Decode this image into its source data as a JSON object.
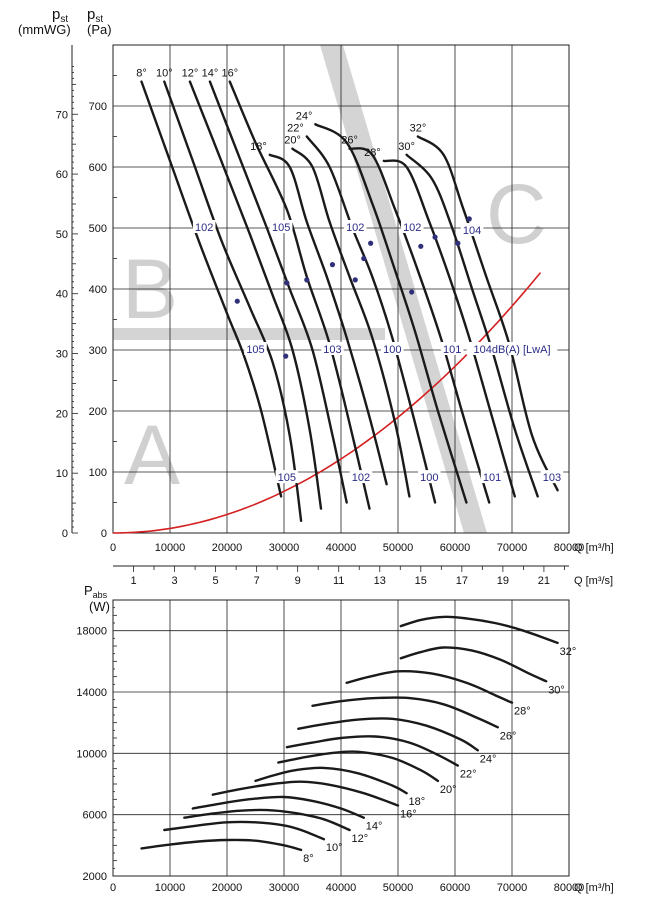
{
  "chart_data": [
    {
      "type": "line",
      "title": "",
      "left_labels": {
        "mmwg": {
          "sym": "p",
          "sub": "st",
          "unit": "(mmWG)"
        },
        "pa": {
          "sym": "p",
          "sub": "st",
          "unit": "(Pa)"
        }
      },
      "xlabel": "Q [m³/h]",
      "x2label": "Q [m³/s]",
      "xlim": [
        0,
        80000
      ],
      "ylim": [
        0,
        800
      ],
      "x_ticks": [
        "0",
        "10000",
        "20000",
        "30000",
        "40000",
        "50000",
        "60000",
        "70000",
        "80000"
      ],
      "x2_ticks": [
        "1",
        "3",
        "5",
        "7",
        "9",
        "11",
        "13",
        "15",
        "17",
        "19",
        "21"
      ],
      "y_ticks_pa": [
        "0",
        "100",
        "200",
        "300",
        "400",
        "500",
        "600",
        "700"
      ],
      "y_ticks_mmwg": [
        "0",
        "10",
        "20",
        "30",
        "40",
        "50",
        "60",
        "70"
      ],
      "zones": [
        "A",
        "B",
        "C"
      ],
      "system_curve": {
        "q_max": 77000,
        "p_max": 450
      },
      "series": [
        {
          "name": "8°",
          "x": [
            5000,
            10000,
            15000,
            20000,
            23000,
            26000,
            29500
          ],
          "y": [
            740,
            610,
            480,
            360,
            290,
            200,
            60
          ]
        },
        {
          "name": "10°",
          "x": [
            9000,
            14000,
            19000,
            24000,
            28000,
            31000,
            33000
          ],
          "y": [
            740,
            610,
            480,
            370,
            280,
            160,
            20
          ]
        },
        {
          "name": "12°",
          "x": [
            13500,
            19000,
            24000,
            28000,
            31500,
            34500,
            36500
          ],
          "y": [
            740,
            610,
            490,
            390,
            300,
            170,
            40
          ]
        },
        {
          "name": "14°",
          "x": [
            17000,
            22000,
            27000,
            31000,
            35000,
            38500,
            41000
          ],
          "y": [
            740,
            620,
            500,
            400,
            300,
            160,
            50
          ]
        },
        {
          "name": "16°",
          "x": [
            20500,
            25000,
            30500,
            34000,
            38000,
            42000,
            45000
          ],
          "y": [
            740,
            640,
            530,
            420,
            310,
            160,
            40
          ]
        },
        {
          "name": "18°",
          "x": [
            27500,
            31000,
            34000,
            37500,
            41000,
            45000,
            48000
          ],
          "y": [
            620,
            600,
            510,
            420,
            320,
            190,
            80
          ]
        },
        {
          "name": "20°",
          "x": [
            31500,
            35000,
            38000,
            41500,
            45500,
            49500,
            52000
          ],
          "y": [
            630,
            600,
            510,
            420,
            320,
            180,
            60
          ]
        },
        {
          "name": "22°",
          "x": [
            34000,
            38000,
            42000,
            45500,
            49000,
            53000,
            56500
          ],
          "y": [
            650,
            600,
            500,
            420,
            320,
            180,
            50
          ]
        },
        {
          "name": "24°",
          "x": [
            35500,
            41000,
            45500,
            49500,
            53000,
            57000,
            62000
          ],
          "y": [
            670,
            640,
            540,
            430,
            330,
            200,
            50
          ]
        },
        {
          "name": "26°",
          "x": [
            41500,
            45500,
            49500,
            53500,
            57500,
            61500,
            66000
          ],
          "y": [
            630,
            620,
            530,
            430,
            320,
            190,
            50
          ]
        },
        {
          "name": "28°",
          "x": [
            47500,
            51500,
            55500,
            59000,
            62500,
            66500,
            70500
          ],
          "y": [
            610,
            600,
            510,
            420,
            320,
            190,
            60
          ]
        },
        {
          "name": "30°",
          "x": [
            51500,
            56000,
            59500,
            63000,
            66500,
            70500,
            74500
          ],
          "y": [
            620,
            580,
            500,
            400,
            300,
            170,
            60
          ]
        },
        {
          "name": "32°",
          "x": [
            53500,
            58000,
            61500,
            65500,
            69500,
            73500,
            78000
          ],
          "y": [
            650,
            620,
            530,
            420,
            310,
            160,
            70
          ]
        }
      ],
      "noise_labels": [
        {
          "text": "102",
          "x": 16000,
          "y": 500
        },
        {
          "text": "105",
          "x": 29500,
          "y": 500
        },
        {
          "text": "102",
          "x": 42500,
          "y": 500
        },
        {
          "text": "102",
          "x": 52500,
          "y": 500
        },
        {
          "text": "104",
          "x": 63000,
          "y": 495
        },
        {
          "text": "105",
          "x": 25000,
          "y": 300
        },
        {
          "text": "103",
          "x": 38500,
          "y": 300
        },
        {
          "text": "100",
          "x": 49000,
          "y": 300
        },
        {
          "text": "101",
          "x": 59500,
          "y": 300
        },
        {
          "text": "104dB(A) [LwA]",
          "x": 70000,
          "y": 300
        },
        {
          "text": "105",
          "x": 30500,
          "y": 90
        },
        {
          "text": "102",
          "x": 43500,
          "y": 90
        },
        {
          "text": "100",
          "x": 55500,
          "y": 90
        },
        {
          "text": "101",
          "x": 66500,
          "y": 90
        },
        {
          "text": "103",
          "x": 77000,
          "y": 90
        }
      ],
      "markers": [
        {
          "x": 21800,
          "y": 380
        },
        {
          "x": 30300,
          "y": 290
        },
        {
          "x": 30500,
          "y": 410
        },
        {
          "x": 34000,
          "y": 415
        },
        {
          "x": 38500,
          "y": 440
        },
        {
          "x": 42500,
          "y": 415
        },
        {
          "x": 44000,
          "y": 450
        },
        {
          "x": 45200,
          "y": 475
        },
        {
          "x": 52400,
          "y": 395
        },
        {
          "x": 54000,
          "y": 470
        },
        {
          "x": 56500,
          "y": 485
        },
        {
          "x": 60500,
          "y": 475
        },
        {
          "x": 62500,
          "y": 515
        }
      ]
    },
    {
      "type": "line",
      "title": "",
      "ylabel": {
        "sym": "P",
        "sub": "abs",
        "unit": "(W)"
      },
      "xlabel": "Q [m³/h]",
      "xlim": [
        0,
        80000
      ],
      "ylim": [
        2000,
        20000
      ],
      "x_ticks": [
        "0",
        "10000",
        "20000",
        "30000",
        "40000",
        "50000",
        "60000",
        "70000",
        "80000"
      ],
      "y_ticks": [
        "2000",
        "6000",
        "10000",
        "14000",
        "18000"
      ],
      "series": [
        {
          "name": "8°",
          "x": [
            5000,
            10000,
            15000,
            20000,
            25000,
            30000,
            33000
          ],
          "y": [
            3800,
            4050,
            4250,
            4350,
            4300,
            4000,
            3700
          ]
        },
        {
          "name": "10°",
          "x": [
            9000,
            15000,
            20000,
            25000,
            30000,
            33000,
            37000
          ],
          "y": [
            5000,
            5300,
            5500,
            5500,
            5300,
            5000,
            4400
          ]
        },
        {
          "name": "12°",
          "x": [
            12500,
            17000,
            22000,
            27000,
            32000,
            37000,
            41500
          ],
          "y": [
            5800,
            6050,
            6250,
            6300,
            6100,
            5700,
            5000
          ]
        },
        {
          "name": "14°",
          "x": [
            14000,
            20000,
            25000,
            30000,
            35000,
            40000,
            44000
          ],
          "y": [
            6400,
            6800,
            7050,
            7150,
            6900,
            6400,
            5800
          ]
        },
        {
          "name": "16°",
          "x": [
            17500,
            22000,
            28000,
            33000,
            38000,
            44000,
            50000
          ],
          "y": [
            7300,
            7650,
            8000,
            8150,
            7950,
            7400,
            6600
          ]
        },
        {
          "name": "18°",
          "x": [
            25000,
            28000,
            32000,
            37000,
            43000,
            49000,
            51500
          ],
          "y": [
            8200,
            8550,
            8900,
            9050,
            8700,
            7900,
            7400
          ]
        },
        {
          "name": "20°",
          "x": [
            29000,
            33000,
            38000,
            43000,
            49000,
            54000,
            57000
          ],
          "y": [
            9400,
            9700,
            10000,
            10100,
            9700,
            8900,
            8200
          ]
        },
        {
          "name": "22°",
          "x": [
            30500,
            35000,
            40000,
            46000,
            52000,
            57000,
            60500
          ],
          "y": [
            10400,
            10700,
            11000,
            11100,
            10700,
            9900,
            9200
          ]
        },
        {
          "name": "24°",
          "x": [
            32500,
            37000,
            43000,
            49000,
            55000,
            61000,
            64000
          ],
          "y": [
            11600,
            11900,
            12200,
            12250,
            11800,
            10900,
            10200
          ]
        },
        {
          "name": "26°",
          "x": [
            35000,
            40000,
            46000,
            52000,
            58000,
            64000,
            67500
          ],
          "y": [
            13100,
            13400,
            13600,
            13600,
            13200,
            12300,
            11700
          ]
        },
        {
          "name": "28°",
          "x": [
            41000,
            45000,
            50000,
            56000,
            62000,
            67000,
            70000
          ],
          "y": [
            14600,
            15000,
            15350,
            15200,
            14600,
            13800,
            13300
          ]
        },
        {
          "name": "30°",
          "x": [
            50500,
            54000,
            58000,
            63000,
            68000,
            73000,
            76000
          ],
          "y": [
            16200,
            16600,
            16900,
            16700,
            16100,
            15200,
            14700
          ]
        },
        {
          "name": "32°",
          "x": [
            50500,
            54000,
            58000,
            62000,
            67000,
            72000,
            78000
          ],
          "y": [
            18300,
            18700,
            18900,
            18800,
            18500,
            18000,
            17200
          ]
        }
      ]
    }
  ]
}
